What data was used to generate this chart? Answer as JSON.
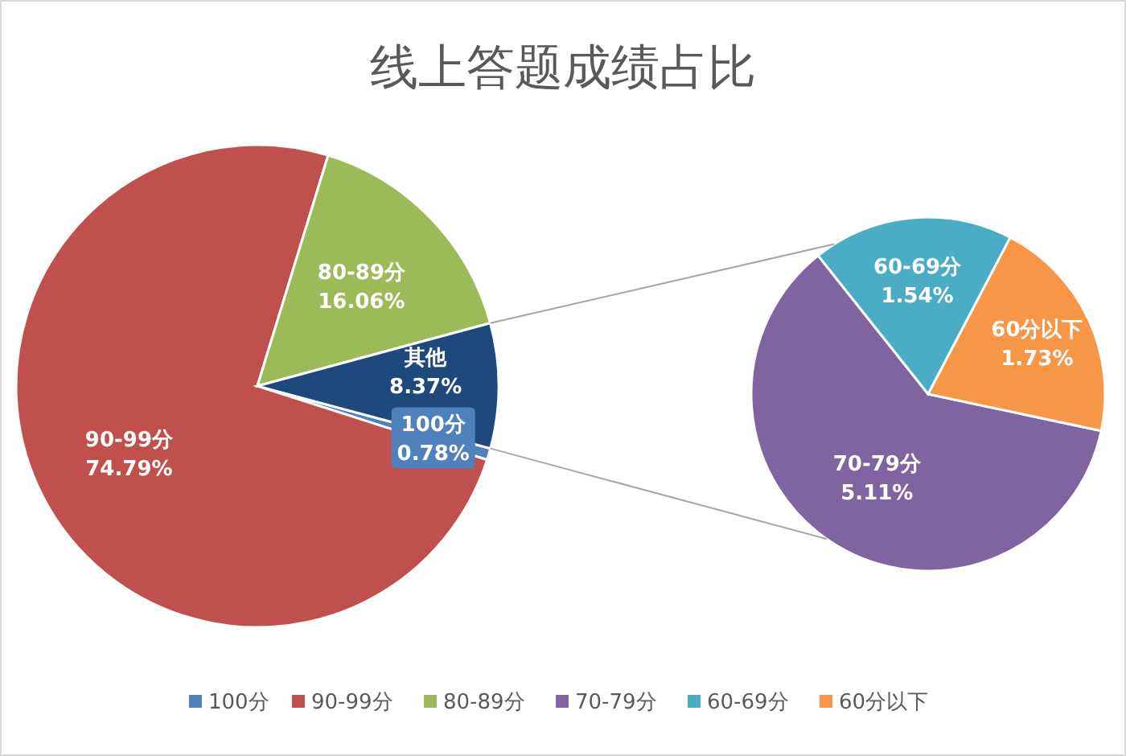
{
  "chart_data": [
    {
      "type": "pie",
      "title": "线上答题成绩占比",
      "categories": [
        "100分",
        "90-99分",
        "80-89分",
        "其他"
      ],
      "values": [
        0.78,
        74.79,
        16.06,
        8.37
      ],
      "colors": [
        "#4f81bd",
        "#c0504d",
        "#9bbb59",
        "#1f497d"
      ],
      "value_labels": [
        "0.78%",
        "74.79%",
        "16.06%",
        "8.37%"
      ],
      "legend": "bottom"
    },
    {
      "type": "pie",
      "categories": [
        "70-79分",
        "60-69分",
        "60分以下"
      ],
      "values": [
        5.11,
        1.54,
        1.73
      ],
      "colors": [
        "#8064a2",
        "#4bacc6",
        "#f79646"
      ],
      "value_labels": [
        "5.11%",
        "1.54%",
        "1.73%"
      ],
      "legend": "bottom"
    }
  ]
}
